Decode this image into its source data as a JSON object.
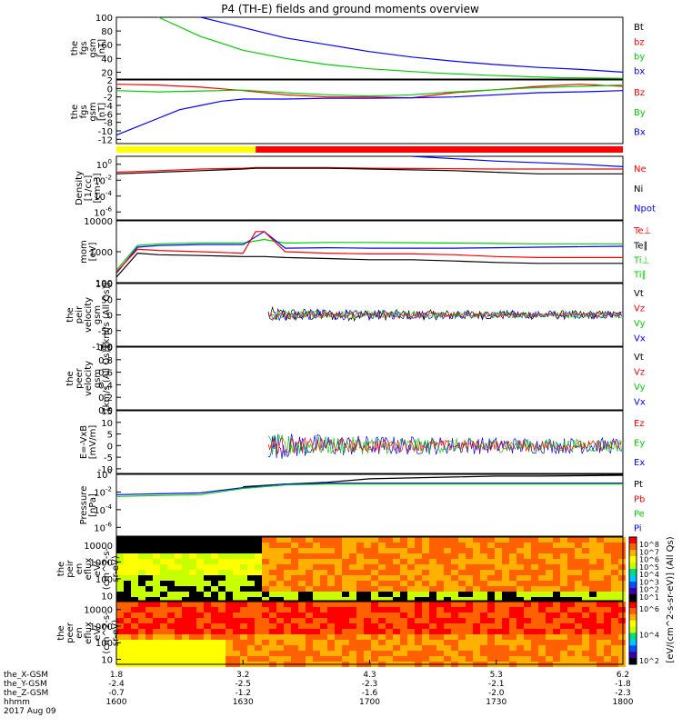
{
  "title": "P4 (TH-E) fields and ground moments overview",
  "colors": {
    "black": "#000000",
    "red": "#ff0000",
    "green": "#00d000",
    "blue": "#0000ff",
    "yellow": "#ffff00"
  },
  "chart_data": {
    "type": "line",
    "x_tick_labels": {
      "x_gsm": [
        "1.8",
        "3.2",
        "4.3",
        "5.3",
        "6.2"
      ],
      "y_gsm": [
        "-2.4",
        "-2.5",
        "-2.3",
        "-2.1",
        "-1.8"
      ],
      "z_gsm": [
        "-0.7",
        "-1.2",
        "-1.6",
        "-2.0",
        "-2.3"
      ],
      "hhmm": [
        "1600",
        "1630",
        "1700",
        "1730",
        "1800"
      ]
    },
    "x_row_labels": [
      "the_X-GSM",
      "the_Y-GSM",
      "the_Z-GSM",
      "hhmm"
    ],
    "date_label": "2017 Aug 09",
    "panels": [
      {
        "id": "fgs-gsm-mag",
        "ylabel": [
          "the",
          "fgs",
          "gsm",
          "[nT]"
        ],
        "ylim": [
          10,
          100
        ],
        "yticks": [
          "100",
          "80",
          "60",
          "40",
          "20"
        ],
        "legend": [
          {
            "name": "Bt",
            "color": "#000000"
          },
          {
            "name": "bz",
            "color": "#ff0000"
          },
          {
            "name": "by",
            "color": "#00d000"
          },
          {
            "name": "bx",
            "color": "#0000ff"
          }
        ],
        "series": [
          {
            "name": "bx",
            "color": "#0000ff",
            "x": [
              1620,
              1630,
              1640,
              1650,
              1700,
              1710,
              1720,
              1730,
              1740,
              1750,
              1800
            ],
            "y": [
              100,
              85,
              70,
              60,
              50,
              42,
              36,
              31,
              27,
              24,
              20
            ]
          },
          {
            "name": "by",
            "color": "#00d000",
            "x": [
              1610,
              1620,
              1630,
              1640,
              1650,
              1700,
              1715,
              1730,
              1745,
              1800
            ],
            "y": [
              100,
              72,
              52,
              40,
              31,
              25,
              19,
              15,
              12,
              11
            ]
          }
        ]
      },
      {
        "id": "fgs-gsm-components",
        "ylabel": [
          "the",
          "fgs",
          "gsm",
          "[nT]"
        ],
        "ylim": [
          -13,
          2
        ],
        "yticks": [
          "2",
          "0",
          "-2",
          "-4",
          "-6",
          "-8",
          "-10",
          "-12"
        ],
        "legend": [
          {
            "name": "Bz",
            "color": "#ff0000"
          },
          {
            "name": "By",
            "color": "#00d000"
          },
          {
            "name": "Bx",
            "color": "#0000ff"
          }
        ],
        "series": [
          {
            "name": "Bz",
            "color": "#ff0000",
            "x": [
              1600,
              1610,
              1620,
              1630,
              1640,
              1650,
              1700,
              1710,
              1720,
              1730,
              1740,
              1750,
              1800
            ],
            "y": [
              1,
              0.8,
              0.3,
              -0.5,
              -1.5,
              -2.0,
              -2.0,
              -2.2,
              -1.0,
              -0.3,
              0.5,
              1.0,
              0.5
            ]
          },
          {
            "name": "By",
            "color": "#00d000",
            "x": [
              1600,
              1610,
              1620,
              1630,
              1640,
              1650,
              1700,
              1710,
              1720,
              1730,
              1740,
              1750,
              1800
            ],
            "y": [
              -0.5,
              -0.8,
              -0.6,
              -0.4,
              -1.0,
              -1.5,
              -1.8,
              -1.5,
              -0.8,
              -0.3,
              0.2,
              0.5,
              0.8
            ]
          },
          {
            "name": "Bx",
            "color": "#0000ff",
            "x": [
              1600,
              1605,
              1610,
              1615,
              1620,
              1625,
              1630,
              1640,
              1650,
              1700,
              1710,
              1720,
              1730,
              1740,
              1750,
              1800
            ],
            "y": [
              -11,
              -9,
              -7,
              -5,
              -4,
              -3,
              -2.5,
              -2.5,
              -2.3,
              -2.3,
              -2.2,
              -2.0,
              -1.5,
              -1.0,
              -0.8,
              -0.5
            ]
          }
        ]
      },
      {
        "id": "mode-bar",
        "segments": [
          {
            "x0": 1600,
            "x1": 1633,
            "color": "#ffff00"
          },
          {
            "x0": 1633,
            "x1": 1800,
            "color": "#ff0000"
          }
        ]
      },
      {
        "id": "density",
        "ylabel": [
          "Density",
          "[1/cc]",
          "[cm-3]"
        ],
        "ylim": [
          -7,
          1
        ],
        "log": true,
        "ytick_exponents": [
          0,
          -2,
          -4,
          -6
        ],
        "ytick_base": "10",
        "legend": [
          {
            "name": "Ne",
            "color": "#ff0000"
          },
          {
            "name": "Ni",
            "color": "#000000"
          },
          {
            "name": "Npot",
            "color": "#0000ff"
          }
        ],
        "series": [
          {
            "name": "Npot",
            "color": "#0000ff",
            "x": [
              1710,
              1730,
              1750,
              1800
            ],
            "y": [
              1,
              0.4,
              0.0,
              -0.3
            ]
          },
          {
            "name": "Ne",
            "color": "#ff0000",
            "x": [
              1600,
              1610,
              1620,
              1630,
              1633,
              1640,
              1650,
              1700,
              1730,
              1800
            ],
            "y": [
              -1.0,
              -0.8,
              -0.6,
              -0.5,
              -0.4,
              -0.4,
              -0.4,
              -0.5,
              -0.6,
              -0.6
            ]
          },
          {
            "name": "Ni",
            "color": "#000000",
            "x": [
              1600,
              1610,
              1620,
              1630,
              1633,
              1640,
              1650,
              1700,
              1720,
              1740,
              1800
            ],
            "y": [
              -1.2,
              -1.0,
              -0.8,
              -0.6,
              -0.5,
              -0.5,
              -0.5,
              -0.6,
              -0.8,
              -1.2,
              -1.2
            ]
          }
        ]
      },
      {
        "id": "temperature",
        "ylabel": [
          "mom",
          "[eV]"
        ],
        "ylim": [
          100,
          10000
        ],
        "log": true,
        "yticks": [
          "10000",
          "1000",
          "100"
        ],
        "legend": [
          {
            "name": "Te⊥",
            "color": "#ff0000"
          },
          {
            "name": "Te∥",
            "color": "#000000"
          },
          {
            "name": "Ti⊥",
            "color": "#00d000"
          },
          {
            "name": "Ti∥",
            "color": "#00d000"
          }
        ],
        "series": [
          {
            "name": "Ti⊥",
            "color": "#00d000",
            "x": [
              1600,
              1605,
              1610,
              1620,
              1630,
              1635,
              1640,
              1650,
              1700,
              1710,
              1720,
              1730,
              1740,
              1800
            ],
            "y": [
              250,
              1600,
              1800,
              1900,
              1900,
              2500,
              1900,
              2000,
              2000,
              1950,
              1900,
              1850,
              1800,
              1800
            ]
          },
          {
            "name": "Te⊥",
            "color": "#0000ff",
            "x": [
              1600,
              1605,
              1610,
              1620,
              1630,
              1635,
              1640,
              1650,
              1700,
              1710,
              1720,
              1730,
              1740,
              1800
            ],
            "y": [
              200,
              1400,
              1600,
              1700,
              1700,
              4500,
              1300,
              1350,
              1300,
              1300,
              1300,
              1350,
              1400,
              1500
            ]
          },
          {
            "name": "Te∥",
            "color": "#ff0000",
            "x": [
              1600,
              1605,
              1610,
              1620,
              1630,
              1633,
              1635,
              1640,
              1650,
              1700,
              1710,
              1720,
              1730,
              1740,
              1800
            ],
            "y": [
              220,
              1200,
              1100,
              1000,
              900,
              4500,
              4500,
              1000,
              900,
              850,
              850,
              800,
              700,
              650,
              650
            ]
          },
          {
            "name": "Ti∥",
            "color": "#000000",
            "x": [
              1600,
              1605,
              1610,
              1620,
              1630,
              1633,
              1635,
              1640,
              1650,
              1700,
              1710,
              1720,
              1730,
              1740,
              1800
            ],
            "y": [
              150,
              900,
              800,
              750,
              700,
              700,
              700,
              650,
              600,
              550,
              550,
              500,
              450,
              420,
              420
            ]
          }
        ]
      },
      {
        "id": "peir-velocity",
        "ylabel": [
          "the",
          "peir",
          "velocity",
          "gsm",
          "[km/s (All Qs)]"
        ],
        "ylim": [
          -100,
          100
        ],
        "yticks": [
          "100",
          "50",
          "0",
          "-50",
          "-100"
        ],
        "legend": [
          {
            "name": "Vt",
            "color": "#000000"
          },
          {
            "name": "Vz",
            "color": "#ff0000"
          },
          {
            "name": "Vy",
            "color": "#00d000"
          },
          {
            "name": "Vx",
            "color": "#0000ff"
          }
        ],
        "noise_start": 1636,
        "noise_amplitude": 25
      },
      {
        "id": "peer-velocity",
        "ylabel": [
          "the",
          "peer",
          "velocity",
          "gsm",
          "[km/s (All Qs)]"
        ],
        "ylim": [
          0,
          1
        ],
        "yticks": [
          "1.0",
          "0.8",
          "0.6",
          "0.4",
          "0.2",
          "0.0"
        ],
        "legend": [
          {
            "name": "Vt",
            "color": "#000000"
          },
          {
            "name": "Vz",
            "color": "#ff0000"
          },
          {
            "name": "Vy",
            "color": "#00d000"
          },
          {
            "name": "Vx",
            "color": "#0000ff"
          }
        ]
      },
      {
        "id": "e-field",
        "ylabel": [
          "E=-VxB",
          "[mV/m]"
        ],
        "ylim": [
          -12,
          15
        ],
        "yticks": [
          "15",
          "10",
          "5",
          "0",
          "-5",
          "-10"
        ],
        "legend": [
          {
            "name": "Ez",
            "color": "#ff0000"
          },
          {
            "name": "Ey",
            "color": "#00d000"
          },
          {
            "name": "Ex",
            "color": "#0000ff"
          }
        ],
        "noise_start": 1636,
        "noise_amplitude": 6
      },
      {
        "id": "pressure",
        "ylabel": [
          "Pressure",
          "[nPa]"
        ],
        "ylim": [
          -7,
          0
        ],
        "log": true,
        "ytick_exponents": [
          0,
          -2,
          -4,
          -6
        ],
        "ytick_base": "10",
        "legend": [
          {
            "name": "Pt",
            "color": "#000000"
          },
          {
            "name": "Pb",
            "color": "#ff0000"
          },
          {
            "name": "Pe",
            "color": "#00d000"
          },
          {
            "name": "Pi",
            "color": "#0000ff"
          }
        ],
        "series": [
          {
            "name": "Pt",
            "color": "#000000",
            "x": [
              1630,
              1640,
              1650,
              1700,
              1710,
              1720,
              1730,
              1740,
              1750,
              1800
            ],
            "y": [
              -1.4,
              -1.1,
              -0.9,
              -0.5,
              -0.4,
              -0.3,
              -0.2,
              -0.2,
              -0.15,
              -0.1
            ]
          },
          {
            "name": "Pi",
            "color": "#0000ff",
            "x": [
              1600,
              1610,
              1620,
              1630,
              1640,
              1650,
              1700,
              1730,
              1800
            ],
            "y": [
              -2.3,
              -2.2,
              -2.1,
              -1.5,
              -1.1,
              -1.0,
              -1.0,
              -1.0,
              -1.0
            ]
          },
          {
            "name": "Pe",
            "color": "#00d000",
            "x": [
              1600,
              1610,
              1620,
              1630,
              1640,
              1650,
              1700,
              1730,
              1800
            ],
            "y": [
              -2.5,
              -2.4,
              -2.3,
              -1.6,
              -1.2,
              -1.1,
              -1.1,
              -1.1,
              -1.1
            ]
          }
        ]
      },
      {
        "id": "peir-spectrogram",
        "ylabel": [
          "the",
          "peir",
          "en",
          "eflux",
          "eV/",
          "(cm^2-s-",
          "sr-eV)"
        ],
        "yticks": [
          "10000",
          "1000",
          "100",
          "10"
        ],
        "ylim": [
          5,
          30000
        ],
        "colorbar_ticks": [
          "10^8",
          "10^7",
          "10^6",
          "10^5",
          "10^4",
          "10^3",
          "10^2",
          "10^1"
        ],
        "colorbar_label": "[eV/(cm^2-s-sr-eV)] (All Qs)"
      },
      {
        "id": "peer-spectrogram",
        "ylabel": [
          "the",
          "peer",
          "en",
          "eflux",
          "eV/",
          "(cm^2-s-",
          "sr-eV)"
        ],
        "yticks": [
          "10000",
          "1000",
          "100",
          "10"
        ],
        "ylim": [
          5,
          30000
        ],
        "colorbar_ticks": [
          "10^6",
          "10^4",
          "10^2"
        ],
        "colorbar_label": "[eV/(cm^2-s-sr-eV)] (All Qs)"
      }
    ]
  }
}
